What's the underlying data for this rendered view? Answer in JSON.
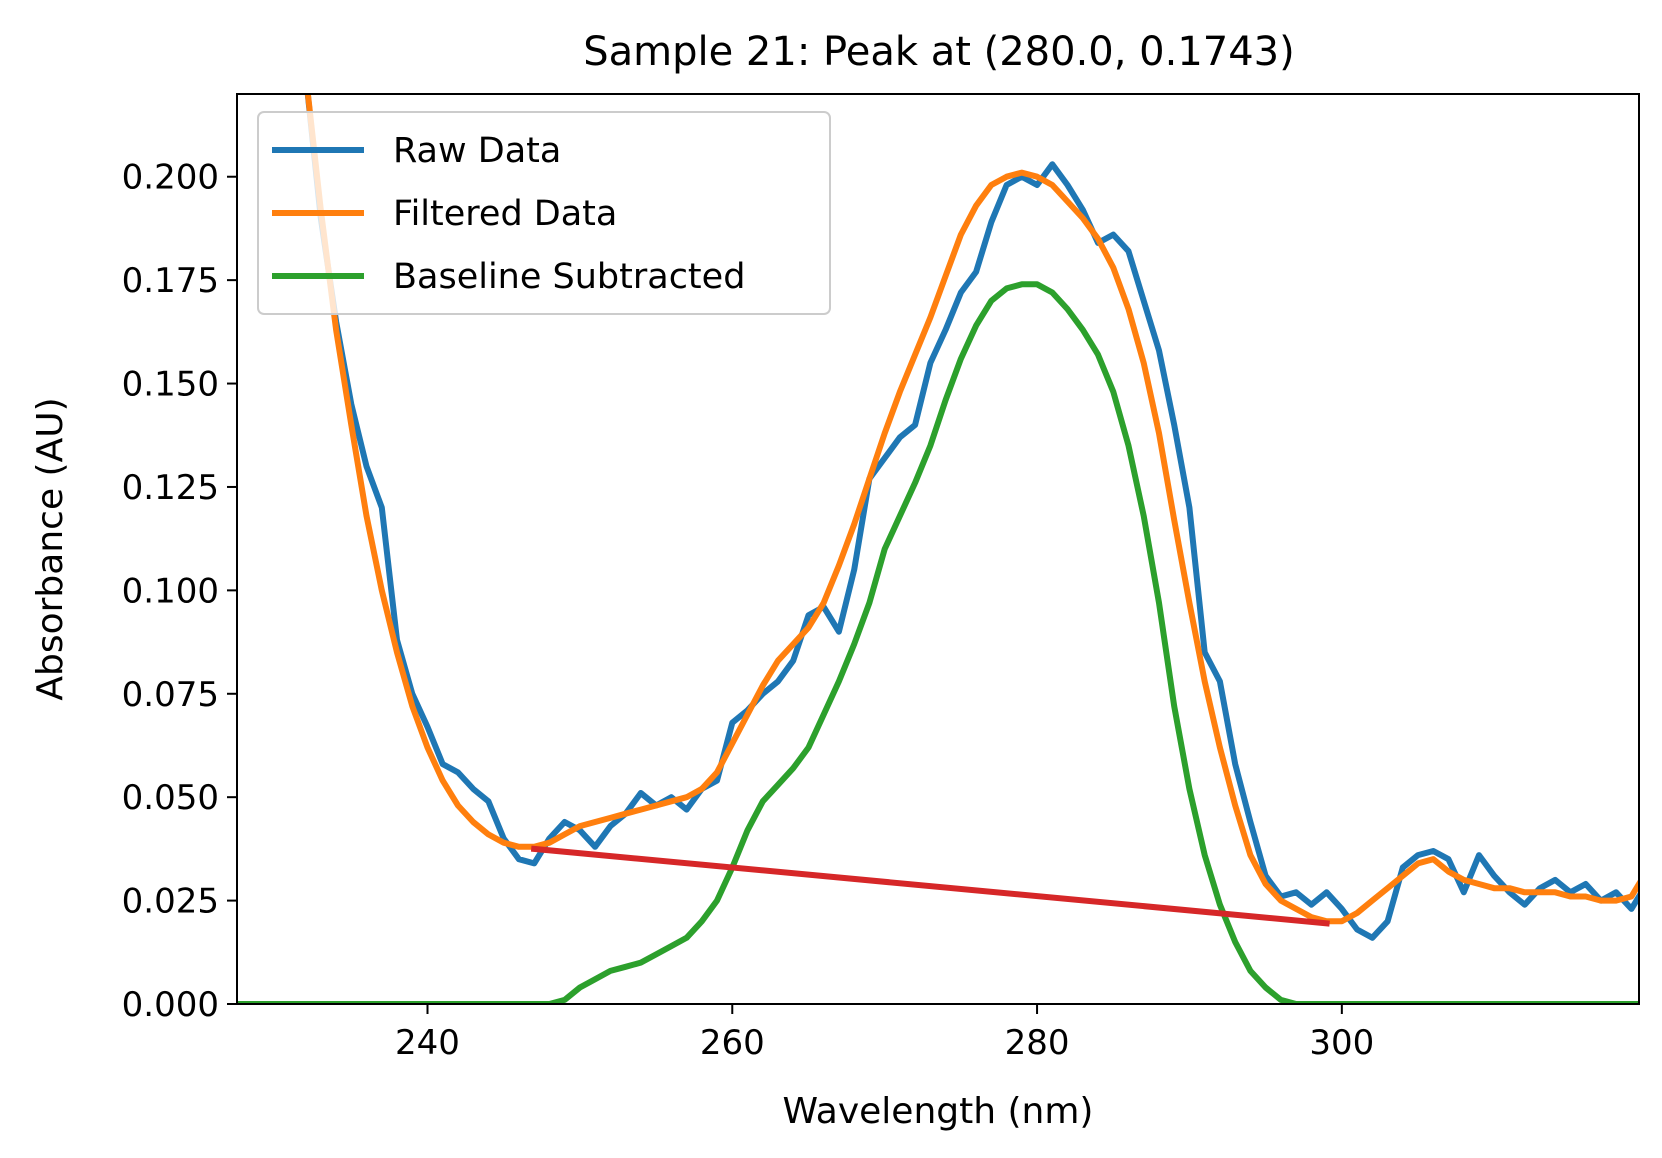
{
  "chart_data": {
    "type": "line",
    "title": "Sample 21: Peak at (280.0, 0.1743)",
    "xlabel": "Wavelength (nm)",
    "ylabel": "Absorbance (AU)",
    "xlim": [
      227.5,
      319.5
    ],
    "ylim": [
      0.0,
      0.22
    ],
    "xticks": [
      240,
      260,
      280,
      300
    ],
    "xtick_labels": [
      "240",
      "260",
      "280",
      "300"
    ],
    "yticks": [
      0.0,
      0.025,
      0.05,
      0.075,
      0.1,
      0.125,
      0.15,
      0.175,
      0.2
    ],
    "ytick_labels": [
      "0.000",
      "0.025",
      "0.050",
      "0.075",
      "0.100",
      "0.125",
      "0.150",
      "0.175",
      "0.200"
    ],
    "grid": false,
    "legend_position": "upper-left",
    "series": [
      {
        "name": "Raw Data",
        "color": "#1f77b4",
        "x": [
          232,
          233,
          234,
          235,
          236,
          237,
          238,
          239,
          240,
          241,
          242,
          243,
          244,
          245,
          246,
          247,
          248,
          249,
          250,
          251,
          252,
          253,
          254,
          255,
          256,
          257,
          258,
          259,
          260,
          261,
          262,
          263,
          264,
          265,
          266,
          267,
          268,
          269,
          270,
          271,
          272,
          273,
          274,
          275,
          276,
          277,
          278,
          279,
          280,
          281,
          282,
          283,
          284,
          285,
          286,
          287,
          288,
          289,
          290,
          291,
          292,
          293,
          294,
          295,
          296,
          297,
          298,
          299,
          300,
          301,
          302,
          303,
          304,
          305,
          306,
          307,
          308,
          309,
          310,
          311,
          312,
          313,
          314,
          315,
          316,
          317,
          318,
          319,
          319.5
        ],
        "y": [
          0.225,
          0.19,
          0.165,
          0.145,
          0.13,
          0.12,
          0.088,
          0.075,
          0.067,
          0.058,
          0.056,
          0.052,
          0.049,
          0.04,
          0.035,
          0.034,
          0.04,
          0.044,
          0.042,
          0.038,
          0.043,
          0.046,
          0.051,
          0.048,
          0.05,
          0.047,
          0.052,
          0.054,
          0.068,
          0.071,
          0.075,
          0.078,
          0.083,
          0.094,
          0.096,
          0.09,
          0.105,
          0.127,
          0.132,
          0.137,
          0.14,
          0.155,
          0.163,
          0.172,
          0.177,
          0.189,
          0.198,
          0.2,
          0.198,
          0.203,
          0.198,
          0.192,
          0.184,
          0.186,
          0.182,
          0.17,
          0.158,
          0.14,
          0.12,
          0.085,
          0.078,
          0.058,
          0.044,
          0.031,
          0.026,
          0.027,
          0.024,
          0.027,
          0.023,
          0.018,
          0.016,
          0.02,
          0.033,
          0.036,
          0.037,
          0.035,
          0.027,
          0.036,
          0.031,
          0.027,
          0.024,
          0.028,
          0.03,
          0.027,
          0.029,
          0.025,
          0.027,
          0.023,
          0.026
        ]
      },
      {
        "name": "Filtered Data",
        "color": "#ff7f0e",
        "x": [
          232,
          233,
          234,
          235,
          236,
          237,
          238,
          239,
          240,
          241,
          242,
          243,
          244,
          245,
          246,
          247,
          248,
          249,
          250,
          251,
          252,
          253,
          254,
          255,
          256,
          257,
          258,
          259,
          260,
          261,
          262,
          263,
          264,
          265,
          266,
          267,
          268,
          269,
          270,
          271,
          272,
          273,
          274,
          275,
          276,
          277,
          278,
          279,
          280,
          281,
          282,
          283,
          284,
          285,
          286,
          287,
          288,
          289,
          290,
          291,
          292,
          293,
          294,
          295,
          296,
          297,
          298,
          299,
          300,
          301,
          302,
          303,
          304,
          305,
          306,
          307,
          308,
          309,
          310,
          311,
          312,
          313,
          314,
          315,
          316,
          317,
          318,
          319,
          319.5
        ],
        "y": [
          0.225,
          0.192,
          0.163,
          0.14,
          0.118,
          0.1,
          0.085,
          0.072,
          0.062,
          0.054,
          0.048,
          0.044,
          0.041,
          0.039,
          0.038,
          0.038,
          0.039,
          0.041,
          0.043,
          0.044,
          0.045,
          0.046,
          0.047,
          0.048,
          0.049,
          0.05,
          0.052,
          0.056,
          0.063,
          0.07,
          0.077,
          0.083,
          0.087,
          0.091,
          0.097,
          0.106,
          0.116,
          0.127,
          0.138,
          0.148,
          0.157,
          0.166,
          0.176,
          0.186,
          0.193,
          0.198,
          0.2,
          0.201,
          0.2,
          0.198,
          0.194,
          0.19,
          0.185,
          0.178,
          0.168,
          0.155,
          0.138,
          0.117,
          0.097,
          0.078,
          0.062,
          0.048,
          0.036,
          0.029,
          0.025,
          0.023,
          0.021,
          0.02,
          0.02,
          0.022,
          0.025,
          0.028,
          0.031,
          0.034,
          0.035,
          0.032,
          0.03,
          0.029,
          0.028,
          0.028,
          0.027,
          0.027,
          0.027,
          0.026,
          0.026,
          0.025,
          0.025,
          0.026,
          0.029
        ]
      },
      {
        "name": "Baseline Subtracted",
        "color": "#2ca02c",
        "x": [
          227.5,
          248,
          249,
          250,
          251,
          252,
          253,
          254,
          255,
          256,
          257,
          258,
          259,
          260,
          261,
          262,
          263,
          264,
          265,
          266,
          267,
          268,
          269,
          270,
          271,
          272,
          273,
          274,
          275,
          276,
          277,
          278,
          279,
          280,
          281,
          282,
          283,
          284,
          285,
          286,
          287,
          288,
          289,
          290,
          291,
          292,
          293,
          294,
          295,
          296,
          297,
          298,
          299,
          300,
          319.5
        ],
        "y": [
          0.0,
          0.0,
          0.001,
          0.004,
          0.006,
          0.008,
          0.009,
          0.01,
          0.012,
          0.014,
          0.016,
          0.02,
          0.025,
          0.033,
          0.042,
          0.049,
          0.053,
          0.057,
          0.062,
          0.07,
          0.078,
          0.087,
          0.097,
          0.11,
          0.118,
          0.126,
          0.135,
          0.146,
          0.156,
          0.164,
          0.17,
          0.173,
          0.174,
          0.174,
          0.172,
          0.168,
          0.163,
          0.157,
          0.148,
          0.135,
          0.118,
          0.097,
          0.072,
          0.052,
          0.036,
          0.024,
          0.015,
          0.008,
          0.004,
          0.001,
          0.0,
          0.0,
          0.0,
          0.0,
          0.0
        ]
      },
      {
        "color": "#d62728",
        "x": [
          247,
          299
        ],
        "y": [
          0.0375,
          0.0195
        ]
      }
    ]
  }
}
